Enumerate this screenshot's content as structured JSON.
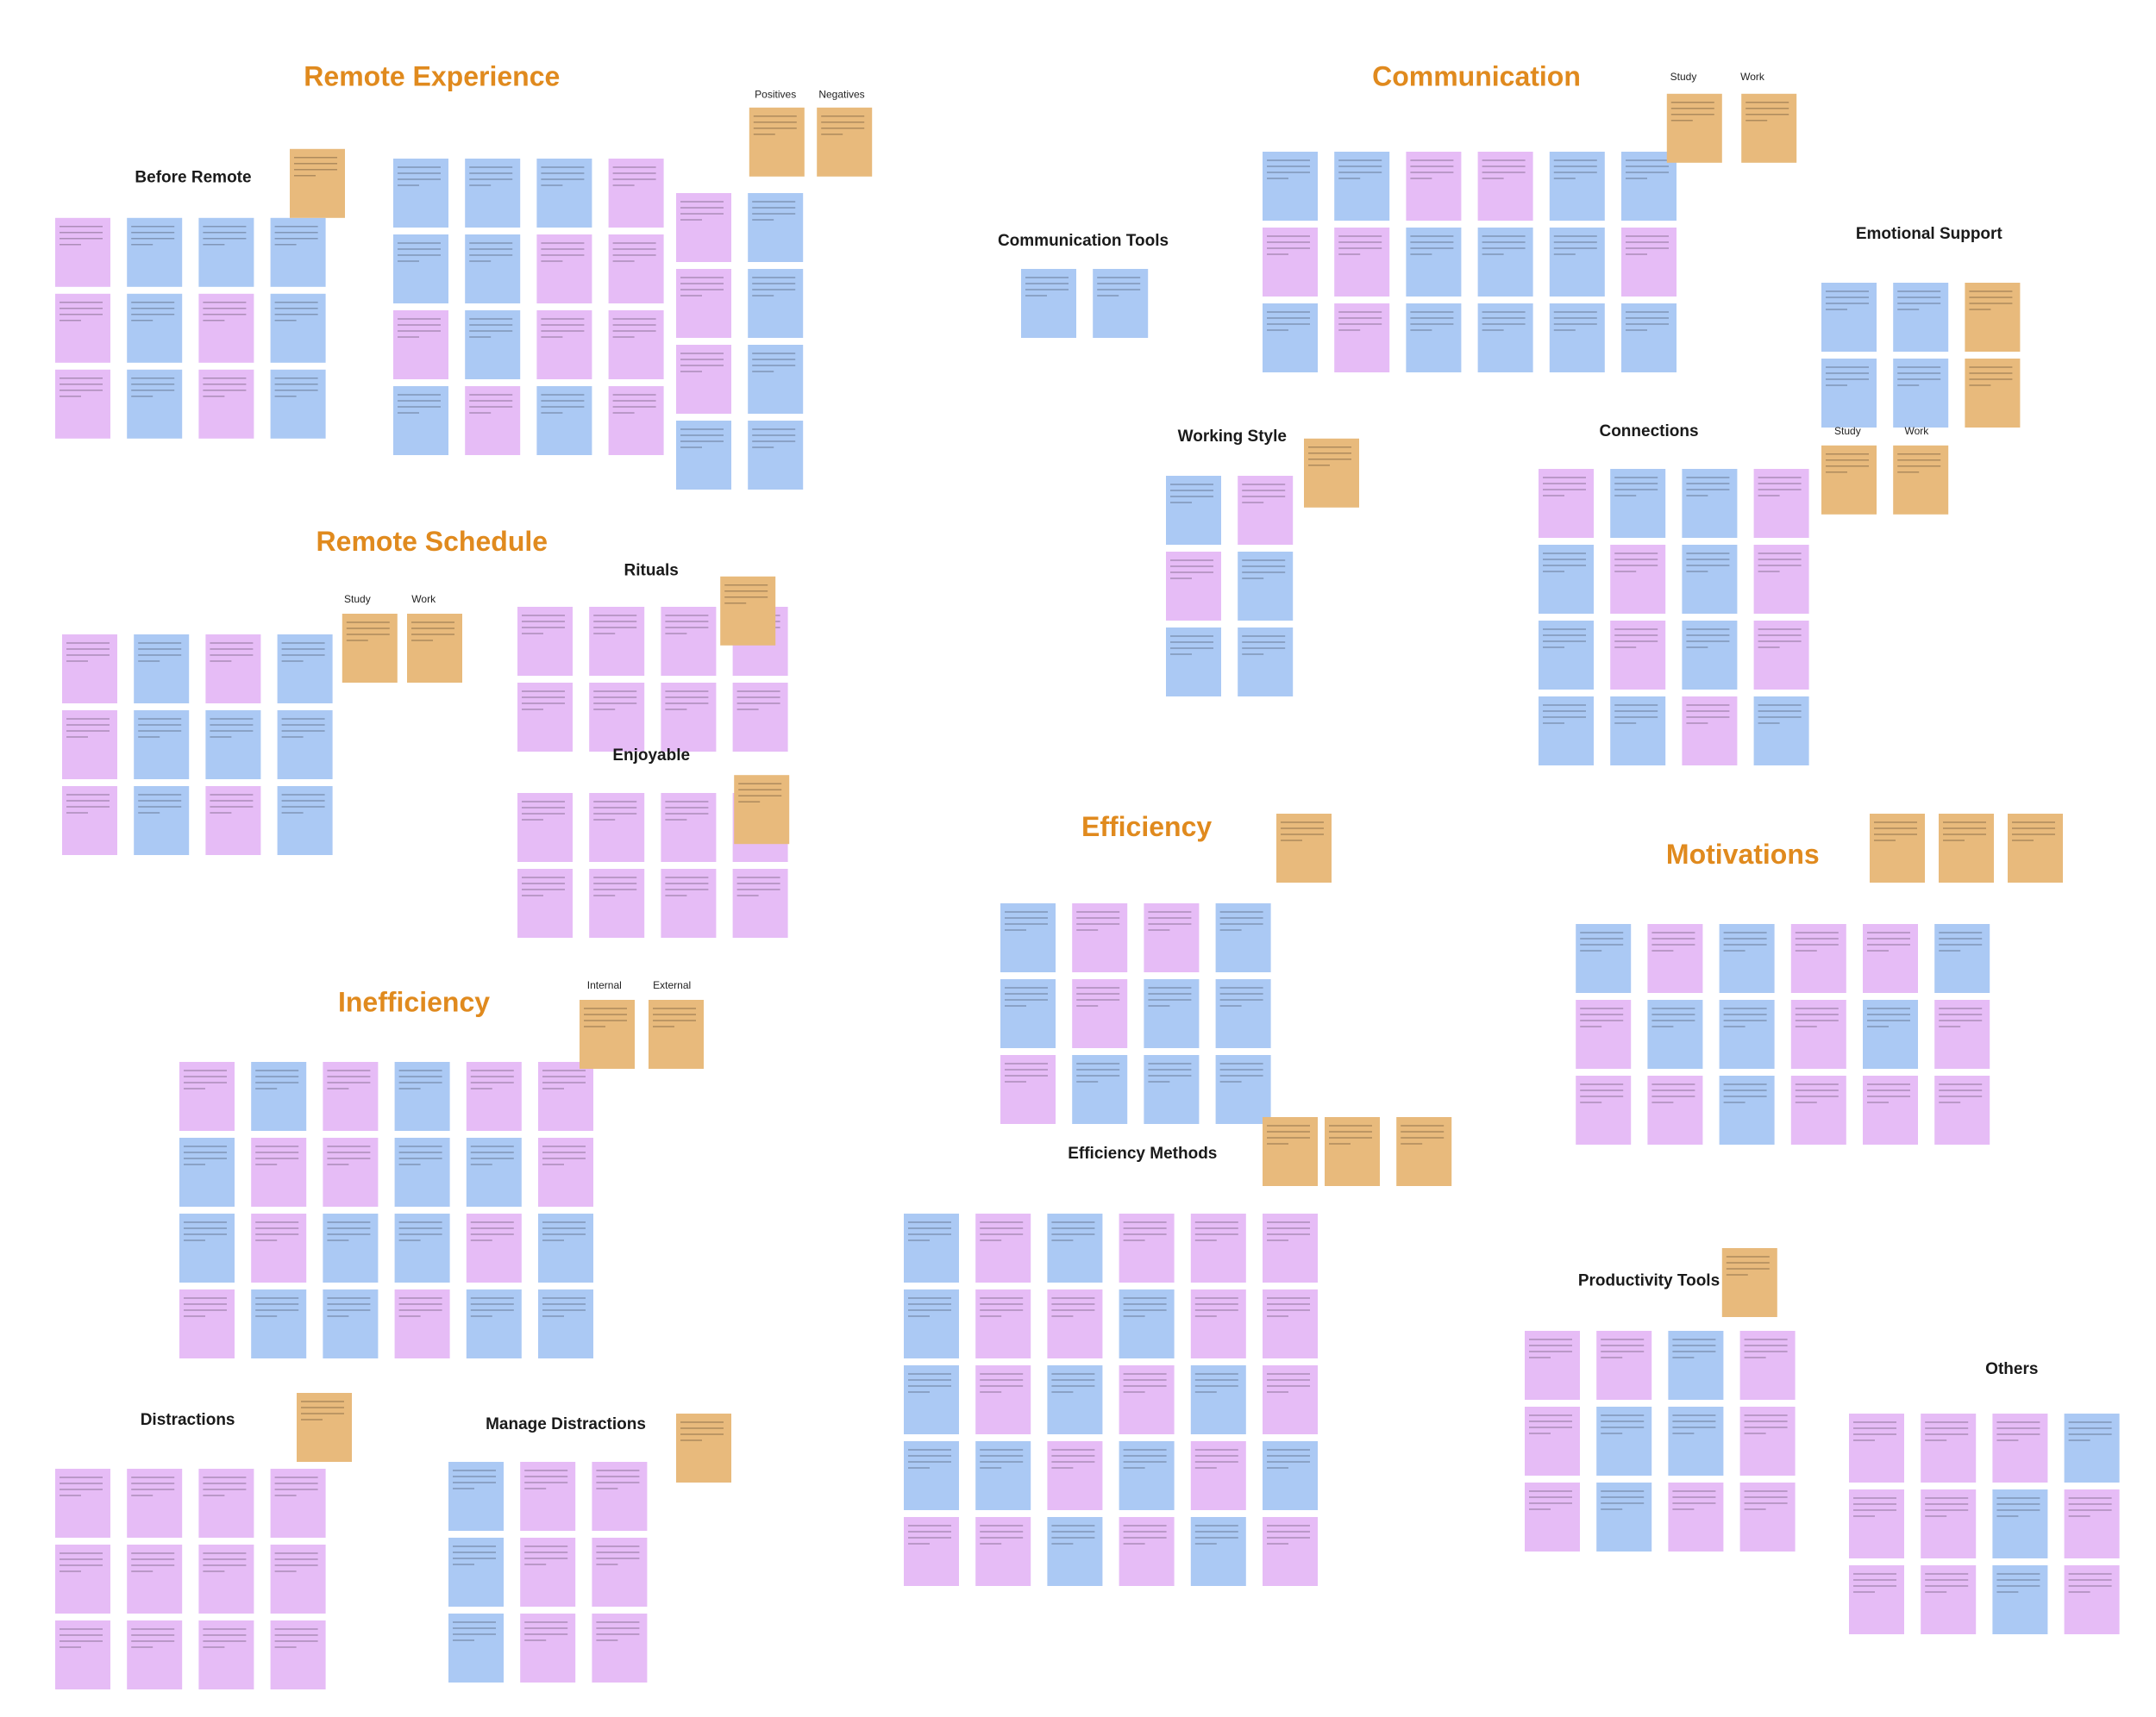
{
  "sections": [
    "Remote Experience",
    "Communication",
    "Remote Schedule",
    "Efficiency",
    "Motivations",
    "Inefficiency"
  ],
  "groups": [
    "Before Remote",
    "Communication Tools",
    "Emotional Support",
    "Working Style",
    "Connections",
    "Rituals",
    "Enjoyable",
    "Efficiency Methods",
    "Productivity Tools",
    "Others",
    "Distractions",
    "Manage Distractions"
  ],
  "column_labels": [
    "Positives",
    "Negatives",
    "Study",
    "Work",
    "Study",
    "Work",
    "Study",
    "Work",
    "Internal",
    "External"
  ]
}
